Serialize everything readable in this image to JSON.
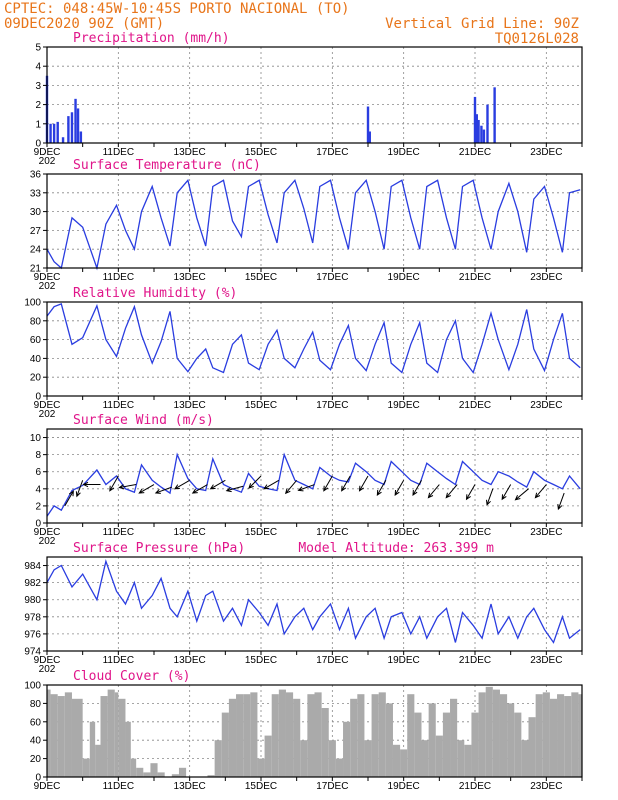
{
  "header": {
    "line1": "CPTEC:   048:45W-10:45S  PORTO NACIONAL (TO)",
    "line2": "09DEC2020 90Z (GMT)",
    "grid_note": "Vertical Grid Line: 90Z",
    "code": "TQ0126L028",
    "altitude_note": "Model Altitude: 263.399 m"
  },
  "colors": {
    "series": "#2a3de0",
    "cloud": "#aaaaaa",
    "title": "#e0158a",
    "header": "#e8751a"
  },
  "x_axis": {
    "start_day": 9,
    "end_day": 24,
    "labels": [
      "9DEC",
      "11DEC",
      "13DEC",
      "15DEC",
      "17DEC",
      "19DEC",
      "21DEC",
      "23DEC"
    ],
    "first_label_under": "202"
  },
  "chart_data": [
    {
      "type": "bar",
      "title": "Precipitation (mm/h)",
      "ylim": [
        0,
        5
      ],
      "yticks": [
        0,
        1,
        2,
        3,
        4,
        5
      ],
      "grid": true,
      "x": [
        9.0,
        9.1,
        9.2,
        9.3,
        9.45,
        9.6,
        9.7,
        9.8,
        9.87,
        9.95,
        18.0,
        18.05,
        21.0,
        21.05,
        21.1,
        21.18,
        21.25,
        21.35,
        21.55
      ],
      "values": [
        3.5,
        1.0,
        1.0,
        1.1,
        0.3,
        1.4,
        1.6,
        2.3,
        1.8,
        0.6,
        1.9,
        0.6,
        2.4,
        1.5,
        1.2,
        0.9,
        0.7,
        2.0,
        2.9
      ]
    },
    {
      "type": "line",
      "title": "Surface Temperature (nC)",
      "ylim": [
        21,
        36
      ],
      "yticks": [
        21,
        24,
        27,
        30,
        33,
        36
      ],
      "grid": true,
      "x": [
        9.0,
        9.2,
        9.4,
        9.7,
        10.0,
        10.4,
        10.65,
        10.95,
        11.2,
        11.45,
        11.65,
        11.95,
        12.2,
        12.45,
        12.65,
        12.95,
        13.2,
        13.45,
        13.65,
        13.95,
        14.2,
        14.45,
        14.65,
        14.95,
        15.2,
        15.45,
        15.65,
        15.95,
        16.2,
        16.45,
        16.65,
        16.95,
        17.2,
        17.45,
        17.65,
        17.95,
        18.2,
        18.45,
        18.65,
        18.95,
        19.2,
        19.45,
        19.65,
        19.95,
        20.2,
        20.45,
        20.65,
        20.95,
        21.2,
        21.45,
        21.65,
        21.95,
        22.2,
        22.45,
        22.65,
        22.95,
        23.2,
        23.45,
        23.65,
        23.95
      ],
      "series": [
        {
          "values": [
            24.0,
            22.0,
            21.0,
            29.0,
            27.5,
            21.0,
            28.0,
            31.0,
            27.0,
            24.0,
            30.0,
            34.0,
            29.0,
            24.5,
            33.0,
            35.0,
            29.0,
            24.5,
            34.0,
            35.0,
            28.5,
            26.0,
            34.0,
            35.0,
            29.5,
            25.0,
            33.0,
            35.0,
            30.5,
            25.0,
            34.0,
            35.0,
            29.0,
            24.0,
            33.0,
            35.0,
            30.0,
            24.0,
            34.0,
            35.0,
            29.0,
            24.0,
            34.0,
            35.0,
            29.0,
            24.0,
            34.0,
            35.0,
            29.0,
            24.0,
            30.0,
            34.5,
            30.0,
            23.5,
            32.0,
            34.0,
            29.0,
            23.5,
            33.0,
            33.5
          ]
        }
      ]
    },
    {
      "type": "line",
      "title": "Relative Humidity (%)",
      "ylim": [
        0,
        100
      ],
      "yticks": [
        0,
        20,
        40,
        60,
        80,
        100
      ],
      "grid": true,
      "x": [
        9.0,
        9.2,
        9.4,
        9.7,
        10.0,
        10.4,
        10.65,
        10.95,
        11.2,
        11.45,
        11.65,
        11.95,
        12.2,
        12.45,
        12.65,
        12.95,
        13.2,
        13.45,
        13.65,
        13.95,
        14.2,
        14.45,
        14.65,
        14.95,
        15.2,
        15.45,
        15.65,
        15.95,
        16.2,
        16.45,
        16.65,
        16.95,
        17.2,
        17.45,
        17.65,
        17.95,
        18.2,
        18.45,
        18.65,
        18.95,
        19.2,
        19.45,
        19.65,
        19.95,
        20.2,
        20.45,
        20.65,
        20.95,
        21.2,
        21.45,
        21.65,
        21.95,
        22.2,
        22.45,
        22.65,
        22.95,
        23.2,
        23.45,
        23.65,
        23.95
      ],
      "series": [
        {
          "values": [
            85.0,
            95.0,
            98.0,
            55.0,
            62.0,
            96.0,
            60.0,
            42.0,
            72.0,
            95.0,
            65.0,
            35.0,
            58.0,
            90.0,
            40.0,
            26.0,
            40.0,
            50.0,
            30.0,
            25.0,
            55.0,
            65.0,
            35.0,
            28.0,
            55.0,
            70.0,
            40.0,
            30.0,
            50.0,
            68.0,
            38.0,
            28.0,
            55.0,
            75.0,
            40.0,
            27.0,
            55.0,
            78.0,
            35.0,
            25.0,
            55.0,
            78.0,
            35.0,
            25.0,
            60.0,
            80.0,
            40.0,
            25.0,
            55.0,
            88.0,
            60.0,
            28.0,
            55.0,
            92.0,
            50.0,
            27.0,
            60.0,
            88.0,
            40.0,
            30.0
          ]
        }
      ]
    },
    {
      "type": "line",
      "title": "Surface Wind (m/s)",
      "ylim": [
        0,
        11
      ],
      "yticks": [
        0,
        2,
        4,
        6,
        8,
        10
      ],
      "grid": true,
      "x": [
        9.0,
        9.2,
        9.4,
        9.7,
        10.0,
        10.4,
        10.65,
        10.95,
        11.2,
        11.45,
        11.65,
        11.95,
        12.2,
        12.45,
        12.65,
        12.95,
        13.2,
        13.45,
        13.65,
        13.95,
        14.2,
        14.45,
        14.65,
        14.95,
        15.2,
        15.45,
        15.65,
        15.95,
        16.2,
        16.45,
        16.65,
        16.95,
        17.2,
        17.45,
        17.65,
        17.95,
        18.2,
        18.45,
        18.65,
        18.95,
        19.2,
        19.45,
        19.65,
        19.95,
        20.2,
        20.45,
        20.65,
        20.95,
        21.2,
        21.45,
        21.65,
        21.95,
        22.2,
        22.45,
        22.65,
        22.95,
        23.2,
        23.45,
        23.65,
        23.95
      ],
      "series": [
        {
          "values": [
            0.8,
            2.0,
            1.5,
            3.8,
            4.4,
            6.2,
            4.5,
            5.5,
            4.0,
            3.6,
            6.8,
            5.0,
            4.2,
            3.5,
            8.0,
            5.2,
            4.0,
            3.8,
            7.5,
            4.5,
            4.0,
            3.6,
            5.8,
            4.3,
            4.0,
            3.8,
            8.0,
            5.0,
            4.5,
            4.0,
            6.5,
            5.5,
            5.0,
            4.8,
            7.0,
            6.0,
            5.0,
            4.5,
            7.2,
            6.0,
            5.0,
            4.5,
            7.0,
            6.0,
            5.2,
            4.5,
            7.2,
            6.0,
            5.0,
            4.5,
            6.0,
            5.5,
            4.8,
            4.2,
            6.0,
            5.0,
            4.5,
            4.0,
            5.5,
            4.0
          ]
        }
      ],
      "wind_arrows": [
        {
          "x": 9.5,
          "speed": 2.0,
          "from_deg": 210
        },
        {
          "x": 10.0,
          "speed": 5.0,
          "from_deg": 20
        },
        {
          "x": 10.5,
          "speed": 4.5,
          "from_deg": 90
        },
        {
          "x": 11.0,
          "speed": 5.5,
          "from_deg": 30
        },
        {
          "x": 11.5,
          "speed": 4.5,
          "from_deg": 80
        },
        {
          "x": 12.0,
          "speed": 4.5,
          "from_deg": 60
        },
        {
          "x": 12.5,
          "speed": 4.2,
          "from_deg": 70
        },
        {
          "x": 13.0,
          "speed": 5.0,
          "from_deg": 60
        },
        {
          "x": 13.5,
          "speed": 4.5,
          "from_deg": 60
        },
        {
          "x": 14.0,
          "speed": 5.0,
          "from_deg": 60
        },
        {
          "x": 14.5,
          "speed": 4.3,
          "from_deg": 75
        },
        {
          "x": 15.0,
          "speed": 5.5,
          "from_deg": 45
        },
        {
          "x": 15.5,
          "speed": 5.0,
          "from_deg": 60
        },
        {
          "x": 16.0,
          "speed": 5.0,
          "from_deg": 40
        },
        {
          "x": 16.5,
          "speed": 4.5,
          "from_deg": 70
        },
        {
          "x": 17.0,
          "speed": 5.5,
          "from_deg": 30
        },
        {
          "x": 17.5,
          "speed": 5.5,
          "from_deg": 30
        },
        {
          "x": 18.0,
          "speed": 5.5,
          "from_deg": 30
        },
        {
          "x": 18.5,
          "speed": 5.0,
          "from_deg": 30
        },
        {
          "x": 19.0,
          "speed": 5.0,
          "from_deg": 30
        },
        {
          "x": 19.5,
          "speed": 5.0,
          "from_deg": 30
        },
        {
          "x": 20.0,
          "speed": 4.5,
          "from_deg": 40
        },
        {
          "x": 20.5,
          "speed": 4.5,
          "from_deg": 40
        },
        {
          "x": 21.0,
          "speed": 4.5,
          "from_deg": 30
        },
        {
          "x": 21.5,
          "speed": 4.0,
          "from_deg": 20
        },
        {
          "x": 22.0,
          "speed": 4.5,
          "from_deg": 30
        },
        {
          "x": 22.5,
          "speed": 4.0,
          "from_deg": 50
        },
        {
          "x": 23.0,
          "speed": 4.5,
          "from_deg": 40
        },
        {
          "x": 23.5,
          "speed": 3.5,
          "from_deg": 20
        }
      ]
    },
    {
      "type": "line",
      "title": "Surface Pressure (hPa)",
      "ylim": [
        974,
        985
      ],
      "yticks": [
        974,
        976,
        978,
        980,
        982,
        984
      ],
      "grid": true,
      "x": [
        9.0,
        9.2,
        9.4,
        9.7,
        10.0,
        10.4,
        10.65,
        10.95,
        11.2,
        11.45,
        11.65,
        11.95,
        12.2,
        12.45,
        12.65,
        12.95,
        13.2,
        13.45,
        13.65,
        13.95,
        14.2,
        14.45,
        14.65,
        14.95,
        15.2,
        15.45,
        15.65,
        15.95,
        16.2,
        16.45,
        16.65,
        16.95,
        17.2,
        17.45,
        17.65,
        17.95,
        18.2,
        18.45,
        18.65,
        18.95,
        19.2,
        19.45,
        19.65,
        19.95,
        20.2,
        20.45,
        20.65,
        20.95,
        21.2,
        21.45,
        21.65,
        21.95,
        22.2,
        22.45,
        22.65,
        22.95,
        23.2,
        23.45,
        23.65,
        23.95
      ],
      "series": [
        {
          "values": [
            982.0,
            983.5,
            984.0,
            981.5,
            983.0,
            980.0,
            984.5,
            981.0,
            979.5,
            982.0,
            979.0,
            980.5,
            982.5,
            979.0,
            978.0,
            981.0,
            977.5,
            980.5,
            981.0,
            977.5,
            979.0,
            977.0,
            980.0,
            978.5,
            977.0,
            979.5,
            976.0,
            978.0,
            979.0,
            976.5,
            978.0,
            979.5,
            976.5,
            979.0,
            975.5,
            978.0,
            979.0,
            975.5,
            978.0,
            978.5,
            976.0,
            978.0,
            975.5,
            978.0,
            979.0,
            975.0,
            978.5,
            977.0,
            975.5,
            979.5,
            976.0,
            978.0,
            975.5,
            978.0,
            979.0,
            976.5,
            975.0,
            978.0,
            975.5,
            976.5
          ]
        }
      ]
    },
    {
      "type": "area",
      "title": "Cloud Cover (%)",
      "ylim": [
        0,
        100
      ],
      "yticks": [
        0,
        20,
        40,
        60,
        80,
        100
      ],
      "grid": true,
      "x": [
        9.0,
        9.1,
        9.3,
        9.5,
        9.7,
        10.0,
        10.2,
        10.35,
        10.5,
        10.7,
        10.9,
        11.0,
        11.2,
        11.35,
        11.5,
        11.7,
        11.9,
        12.1,
        12.3,
        12.5,
        12.7,
        12.9,
        13.2,
        13.5,
        13.7,
        13.9,
        14.1,
        14.3,
        14.5,
        14.7,
        14.9,
        15.1,
        15.3,
        15.5,
        15.7,
        15.9,
        16.1,
        16.3,
        16.5,
        16.7,
        16.9,
        17.1,
        17.3,
        17.5,
        17.7,
        17.9,
        18.1,
        18.3,
        18.5,
        18.7,
        18.9,
        19.1,
        19.3,
        19.5,
        19.7,
        19.9,
        20.1,
        20.3,
        20.5,
        20.7,
        20.9,
        21.1,
        21.3,
        21.5,
        21.7,
        21.9,
        22.1,
        22.3,
        22.5,
        22.7,
        22.9,
        23.1,
        23.3,
        23.5,
        23.7,
        23.9,
        24.0
      ],
      "values": [
        95,
        90,
        88,
        92,
        85,
        20,
        60,
        35,
        88,
        95,
        92,
        85,
        60,
        20,
        10,
        5,
        15,
        5,
        0,
        3,
        10,
        0,
        0,
        2,
        40,
        70,
        85,
        90,
        90,
        92,
        20,
        45,
        90,
        95,
        92,
        85,
        40,
        90,
        92,
        75,
        40,
        20,
        60,
        85,
        90,
        40,
        90,
        92,
        80,
        35,
        30,
        90,
        70,
        40,
        80,
        45,
        70,
        85,
        40,
        35,
        70,
        92,
        98,
        95,
        90,
        80,
        70,
        40,
        65,
        90,
        92,
        85,
        90,
        88,
        92,
        90,
        92
      ]
    }
  ]
}
